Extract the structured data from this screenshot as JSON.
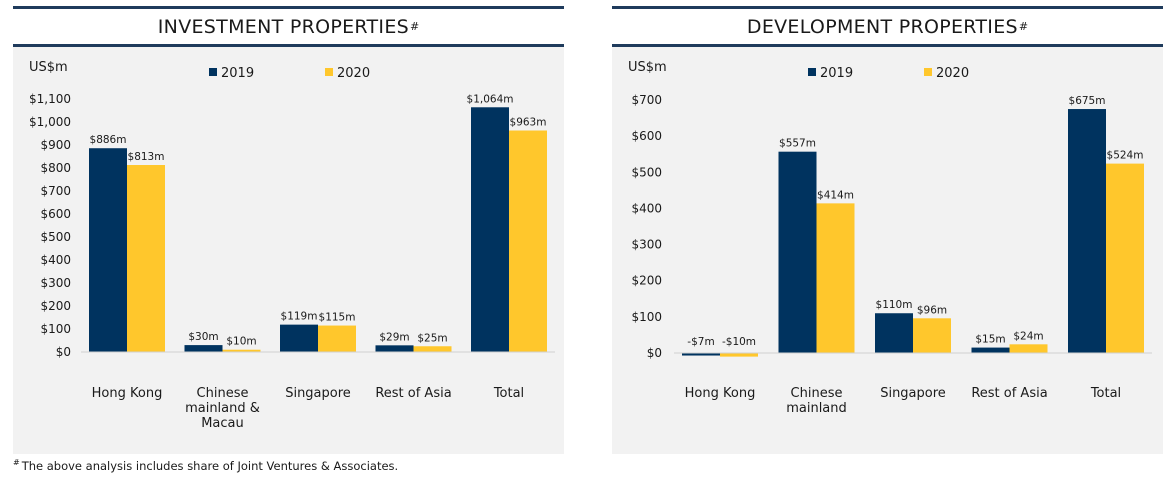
{
  "colors": {
    "series_2019": "#00335f",
    "series_2020": "#ffc72c",
    "panel_bg": "#f2f2f2",
    "rule": "#1f3b5c"
  },
  "footnote": {
    "mark": "#",
    "text": "The above analysis includes share of Joint Ventures & Associates."
  },
  "chart_data": [
    {
      "type": "bar",
      "title": "INVESTMENT PROPERTIES",
      "title_mark": "#",
      "ylabel": "US$m",
      "ylim": [
        0,
        1100
      ],
      "yticks": [
        "$0",
        "$100",
        "$200",
        "$300",
        "$400",
        "$500",
        "$600",
        "$700",
        "$800",
        "$900",
        "$1,000",
        "$1,100"
      ],
      "categories": [
        "Hong Kong",
        "Chinese mainland & Macau",
        "Singapore",
        "Rest of Asia",
        "Total"
      ],
      "category_lines": [
        [
          "Hong Kong"
        ],
        [
          "Chinese",
          "mainland &",
          "Macau"
        ],
        [
          "Singapore"
        ],
        [
          "Rest of Asia"
        ],
        [
          "Total"
        ]
      ],
      "series": [
        {
          "name": "2019",
          "values": [
            886,
            30,
            119,
            29,
            1064
          ],
          "labels": [
            "$886m",
            "$30m",
            "$119m",
            "$29m",
            "$1,064m"
          ]
        },
        {
          "name": "2020",
          "values": [
            813,
            10,
            115,
            25,
            963
          ],
          "labels": [
            "$813m",
            "$10m",
            "$115m",
            "$25m",
            "$963m"
          ]
        }
      ],
      "legend": "top-center",
      "grid": false
    },
    {
      "type": "bar",
      "title": "DEVELOPMENT PROPERTIES",
      "title_mark": "#",
      "ylabel": "US$m",
      "ylim": [
        0,
        700
      ],
      "yticks": [
        "$0",
        "$100",
        "$200",
        "$300",
        "$400",
        "$500",
        "$600",
        "$700"
      ],
      "categories": [
        "Hong Kong",
        "Chinese mainland",
        "Singapore",
        "Rest of Asia",
        "Total"
      ],
      "category_lines": [
        [
          "Hong Kong"
        ],
        [
          "Chinese",
          "mainland"
        ],
        [
          "Singapore"
        ],
        [
          "Rest of Asia"
        ],
        [
          "Total"
        ]
      ],
      "series": [
        {
          "name": "2019",
          "values": [
            -7,
            557,
            110,
            15,
            675
          ],
          "labels": [
            "-$7m",
            "$557m",
            "$110m",
            "$15m",
            "$675m"
          ]
        },
        {
          "name": "2020",
          "values": [
            -10,
            414,
            96,
            24,
            524
          ],
          "labels": [
            "-$10m",
            "$414m",
            "$96m",
            "$24m",
            "$524m"
          ]
        }
      ],
      "legend": "top-center",
      "grid": false
    }
  ]
}
